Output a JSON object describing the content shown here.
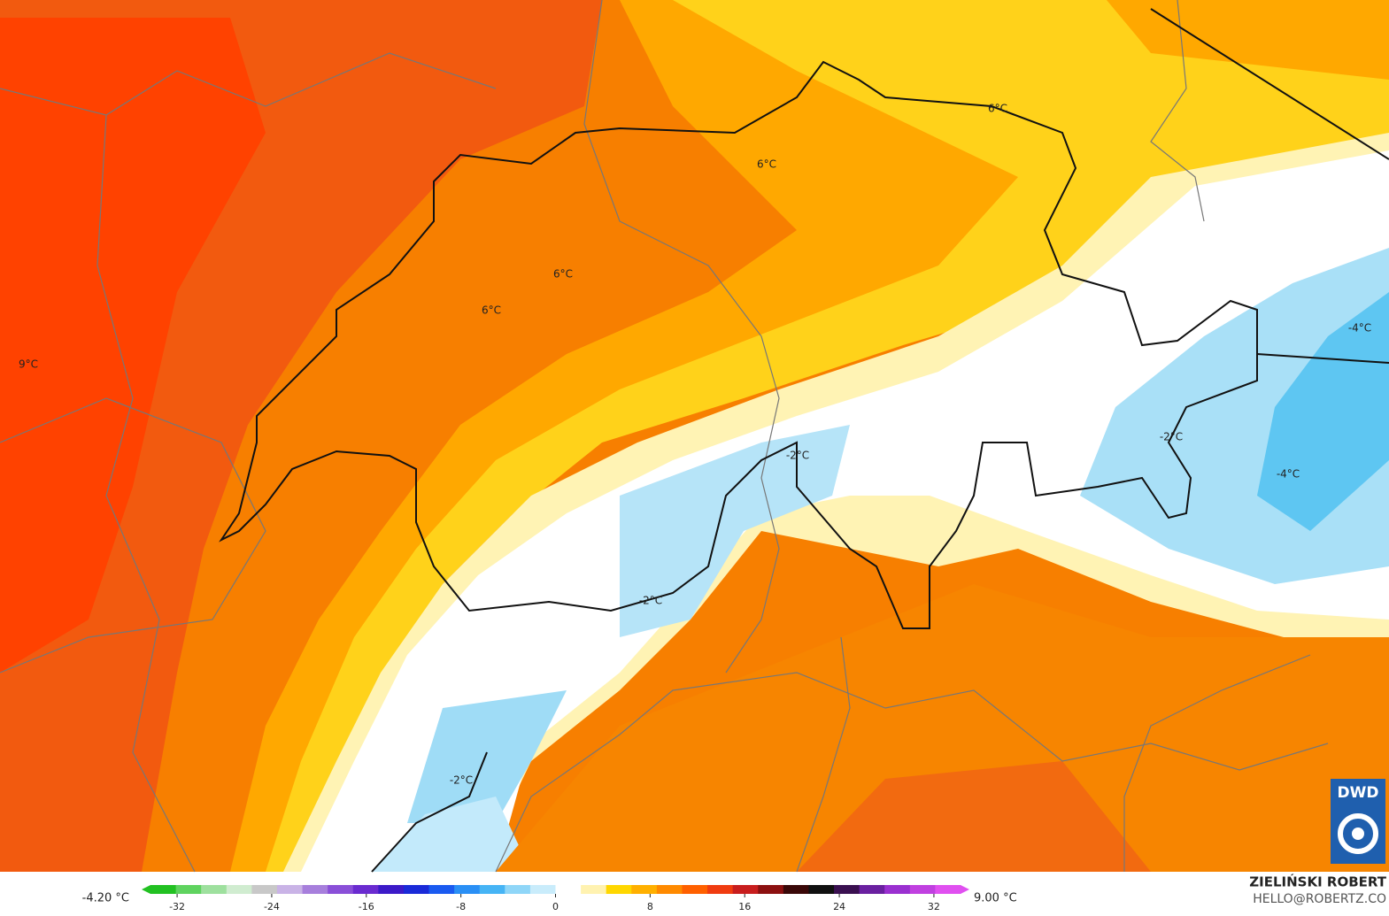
{
  "map": {
    "labels": [
      "9°C",
      "6°C",
      "6°C",
      "6°C",
      "6°C",
      "-2°C",
      "-2°C",
      "-2°C",
      "-2°C",
      "-4°C",
      "-4°C"
    ]
  },
  "colorbar": {
    "min_label": "-4.20 °C",
    "max_label": "9.00 °C",
    "range": [
      -35,
      35
    ],
    "ticks": [
      -32,
      -24,
      -16,
      -8,
      0,
      8,
      16,
      24,
      32
    ],
    "colors": [
      "#22c122",
      "#5fd35f",
      "#9ee09e",
      "#d0ecd0",
      "#c8c8c8",
      "#c9b3e6",
      "#a77fdc",
      "#8a4fd8",
      "#6a2bd0",
      "#3c1ac8",
      "#1a2ad8",
      "#1a5af0",
      "#2a8ff5",
      "#46b4f5",
      "#8fd6f8",
      "#c9ecfb",
      "#ffffff",
      "#fff2b0",
      "#ffd700",
      "#ffb000",
      "#ff8a00",
      "#ff6000",
      "#f03c10",
      "#c81e1e",
      "#8c1010",
      "#3a0808",
      "#101010",
      "#3a1050",
      "#6a20a0",
      "#9a30d0",
      "#c040e0",
      "#e050f0"
    ]
  },
  "branding": {
    "logo": "DWD",
    "author": "ZIELIŃSKI ROBERT",
    "email": "HELLO@ROBERTZ.CO"
  }
}
